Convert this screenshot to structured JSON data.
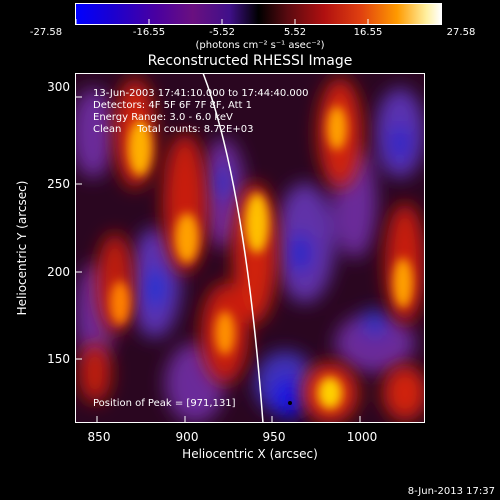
{
  "colorbar": {
    "ticks": [
      "-27.58",
      "-16.55",
      "-5.52",
      "5.52",
      "16.55",
      "27.58"
    ],
    "unit_label": "(photons cm⁻² s⁻¹ asec⁻²)"
  },
  "plot": {
    "title": "Reconstructed RHESSI Image",
    "xlabel": "Heliocentric X (arcsec)",
    "ylabel": "Heliocentric Y (arcsec)",
    "xticks": [
      "850",
      "900",
      "950",
      "1000"
    ],
    "yticks": [
      "150",
      "200",
      "250",
      "300"
    ]
  },
  "overlay": {
    "line1": "13-Jun-2003 17:41:10.000 to 17:44:40.000",
    "line2": "Detectors: 4F 5F 6F 7F 8F, Att 1",
    "line3": "Energy Range: 3.0 - 6.0 keV",
    "line4": "Clean     Total counts: 8.72E+03",
    "peak": "Position of Peak = [971,131]"
  },
  "footer": {
    "date": "8-Jun-2013 17:37"
  },
  "colors": {
    "background": "#000000",
    "limb": "#ffffff"
  }
}
